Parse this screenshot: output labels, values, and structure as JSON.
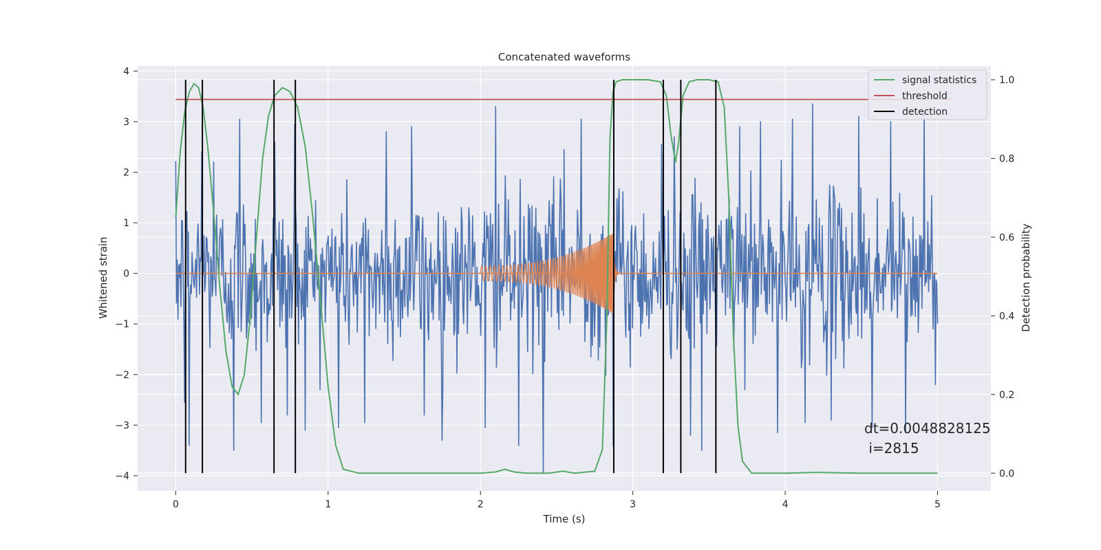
{
  "chart_data": {
    "type": "line",
    "title": "Concatenated waveforms",
    "xlabel": "Time (s)",
    "ylabel": "Whitened strain",
    "y2label": "Detection probability",
    "xlim": [
      -0.25,
      5.35
    ],
    "ylim": [
      -4.3,
      4.1
    ],
    "y2lim": [
      -0.045,
      1.035
    ],
    "x_ticks": [
      0,
      1,
      2,
      3,
      4,
      5
    ],
    "y_ticks": [
      -4,
      -3,
      -2,
      -1,
      0,
      1,
      2,
      3,
      4
    ],
    "y2_ticks": [
      0.0,
      0.2,
      0.4,
      0.6,
      0.8,
      1.0
    ],
    "y_tick_labels": [
      "−4",
      "−3",
      "−2",
      "−1",
      "0",
      "1",
      "2",
      "3",
      "4"
    ],
    "y2_tick_labels": [
      "0.0",
      "0.2",
      "0.4",
      "0.6",
      "0.8",
      "1.0"
    ],
    "grid": true,
    "legend_position": "top-right",
    "series": [
      {
        "kind": "noise",
        "color": "#4c72b0",
        "x_range": [
          0,
          5
        ],
        "sigma": 0.8,
        "peaks": [
          [
            0.06,
            -2.55
          ],
          [
            0.09,
            -3.4
          ],
          [
            0.17,
            2.4
          ],
          [
            0.25,
            2.2
          ],
          [
            0.38,
            -3.5
          ],
          [
            0.42,
            3.05
          ],
          [
            0.56,
            -2.95
          ],
          [
            0.65,
            2.6
          ],
          [
            0.73,
            -2.8
          ],
          [
            0.78,
            2.95
          ],
          [
            0.85,
            -3.1
          ],
          [
            1.07,
            -3.05
          ],
          [
            1.24,
            -2.95
          ],
          [
            1.38,
            2.8
          ],
          [
            1.55,
            2.9
          ],
          [
            1.63,
            -2.8
          ],
          [
            1.75,
            -3.3
          ],
          [
            2.03,
            -3.05
          ],
          [
            2.1,
            3.3
          ],
          [
            2.25,
            -3.4
          ],
          [
            2.41,
            -3.95
          ],
          [
            2.55,
            2.45
          ],
          [
            2.66,
            3.05
          ],
          [
            2.87,
            -3.4
          ],
          [
            3.19,
            2.55
          ],
          [
            3.27,
            2.7
          ],
          [
            3.38,
            -3.2
          ],
          [
            3.45,
            -3.5
          ],
          [
            3.7,
            2.9
          ],
          [
            3.84,
            3.0
          ],
          [
            3.95,
            -3.15
          ],
          [
            4.05,
            3.05
          ],
          [
            4.13,
            -2.95
          ],
          [
            4.18,
            3.35
          ],
          [
            4.3,
            -2.9
          ],
          [
            4.48,
            3.1
          ],
          [
            4.57,
            -3.05
          ],
          [
            4.69,
            3.0
          ],
          [
            4.79,
            -3.15
          ],
          [
            4.91,
            3.2
          ]
        ]
      },
      {
        "kind": "chirp",
        "color": "#dd8452",
        "x": [
          2.0,
          2.87
        ],
        "amp_start": 0.15,
        "amp_end": 0.8,
        "freq_start": 35,
        "freq_end": 150
      },
      {
        "name": "signal statistics",
        "color": "#55a868",
        "axis": "right",
        "x": [
          0.0,
          0.03,
          0.06,
          0.09,
          0.12,
          0.15,
          0.18,
          0.21,
          0.25,
          0.29,
          0.33,
          0.37,
          0.41,
          0.45,
          0.49,
          0.53,
          0.57,
          0.61,
          0.65,
          0.7,
          0.75,
          0.8,
          0.85,
          0.9,
          0.95,
          1.0,
          1.05,
          1.1,
          1.2,
          1.5,
          2.0,
          2.1,
          2.16,
          2.22,
          2.3,
          2.45,
          2.54,
          2.62,
          2.75,
          2.8,
          2.83,
          2.85,
          2.87,
          2.89,
          2.93,
          3.0,
          3.1,
          3.18,
          3.22,
          3.25,
          3.28,
          3.3,
          3.33,
          3.37,
          3.42,
          3.5,
          3.56,
          3.6,
          3.63,
          3.66,
          3.69,
          3.72,
          3.78,
          4.0,
          4.2,
          4.5,
          5.0
        ],
        "values": [
          0.65,
          0.82,
          0.92,
          0.97,
          0.99,
          0.98,
          0.93,
          0.83,
          0.66,
          0.47,
          0.31,
          0.22,
          0.2,
          0.25,
          0.4,
          0.6,
          0.8,
          0.91,
          0.96,
          0.98,
          0.97,
          0.93,
          0.83,
          0.65,
          0.44,
          0.22,
          0.07,
          0.01,
          0.0,
          0.0,
          0.0,
          0.003,
          0.01,
          0.003,
          0.0,
          0.0,
          0.005,
          0.0,
          0.005,
          0.06,
          0.4,
          0.85,
          0.97,
          0.995,
          1.0,
          1.0,
          1.0,
          0.995,
          0.96,
          0.86,
          0.79,
          0.84,
          0.96,
          0.995,
          1.0,
          1.0,
          0.995,
          0.93,
          0.7,
          0.35,
          0.12,
          0.03,
          0.0,
          0.0,
          0.002,
          0.0,
          0.0
        ]
      },
      {
        "name": "threshold",
        "color": "#c44e52",
        "axis": "right",
        "x": [
          0,
          5.1
        ],
        "values": [
          0.95,
          0.95
        ]
      },
      {
        "name": "detection",
        "color": "#000000",
        "axis": "right",
        "kind": "vlines",
        "x": [
          0.065,
          0.175,
          0.645,
          0.785,
          2.875,
          3.2,
          3.315,
          3.545
        ],
        "y_range": [
          0.0,
          1.0
        ]
      }
    ],
    "annotation": {
      "line1": "dt=0.0048828125",
      "line2": " i=2815"
    }
  }
}
